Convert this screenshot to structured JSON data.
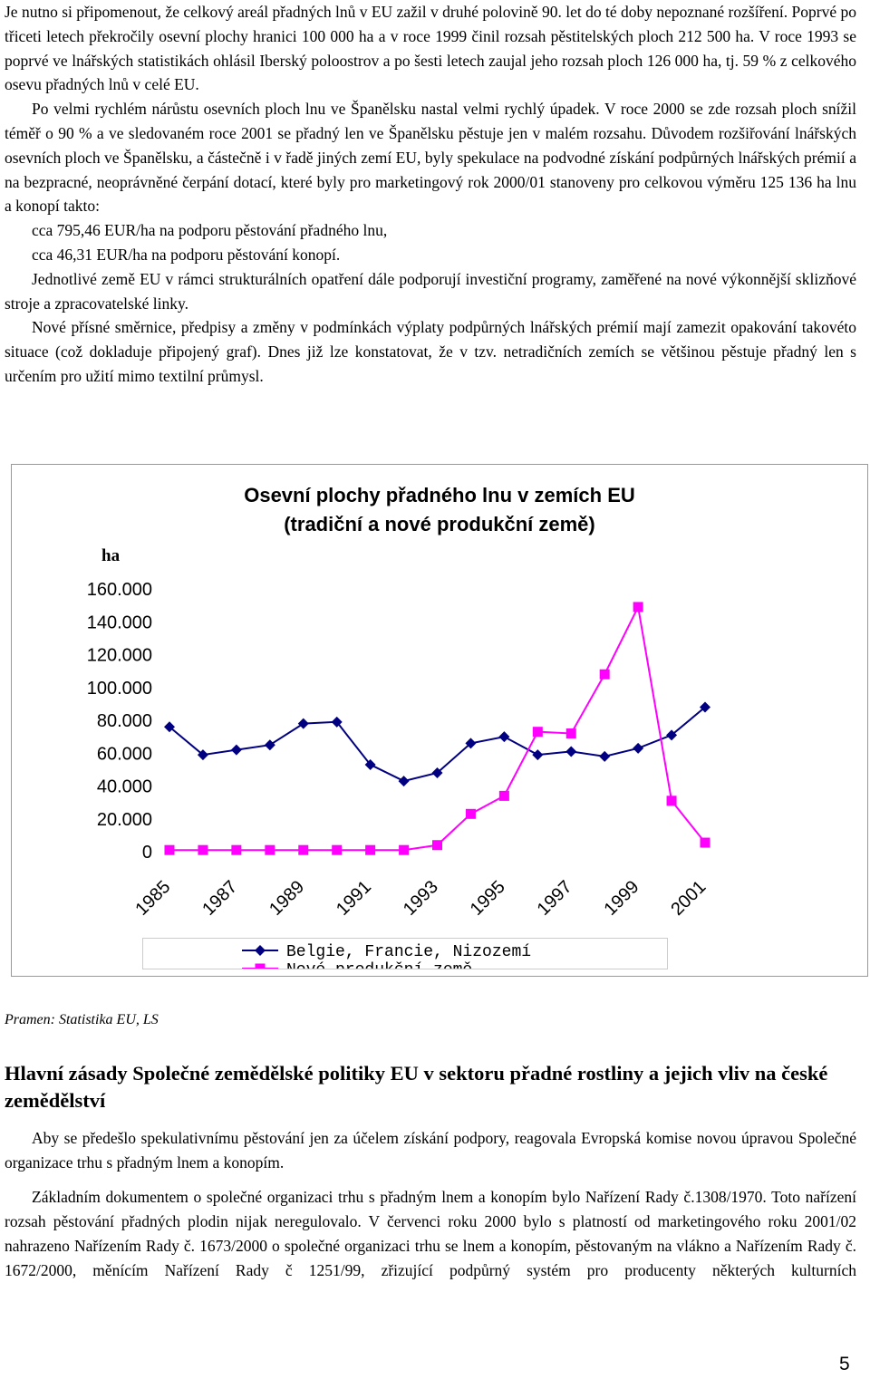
{
  "paragraphs": [
    "Je nutno si připomenout, že celkový areál přadných lnů v EU zažil v druhé polovině 90. let do té doby nepoznané rozšíření. Poprvé po třiceti letech překročily osevní plochy hranici 100 000 ha a v roce 1999 činil rozsah pěstitelských ploch 212 500 ha. V roce 1993 se poprvé ve lnářských statistikách ohlásil Iberský poloostrov a po šesti letech zaujal jeho rozsah ploch 126 000 ha, tj. 59 % z celkového osevu přadných lnů v celé EU.",
    "Po velmi rychlém nárůstu osevních ploch lnu ve Španělsku nastal velmi rychlý úpadek. V roce 2000 se zde rozsah ploch snížil téměř o 90 % a ve sledovaném roce 2001 se přadný len ve Španělsku pěstuje jen v malém rozsahu. Důvodem rozšiřování lnářských osevních ploch ve Španělsku, a částečně i v řadě jiných zemí EU, byly spekulace na podvodné získání podpůrných lnářských prémií a na bezpracné, neoprávněné čerpání dotací, které byly pro marketingový rok 2000/01 stanoveny pro celkovou výměru 125 136 ha lnu a konopí takto:",
    "cca 795,46 EUR/ha na podporu pěstování přadného lnu,",
    "cca 46,31 EUR/ha na podporu pěstování konopí.",
    "Jednotlivé země EU v rámci strukturálních opatření dále podporují investiční programy, zaměřené na nové výkonnější sklizňové stroje a zpracovatelské linky.",
    "Nové přísné směrnice, předpisy a změny v podmínkách výplaty podpůrných lnářských prémií mají zamezit opakování takovéto situace (což dokladuje připojený graf). Dnes již lze konstatovat, že v tzv. netradičních zemích se většinou pěstuje přadný len s určením pro užití mimo textilní průmysl."
  ],
  "chart_data": {
    "type": "line",
    "title": [
      "Osevní plochy přadného lnu v zemích EU",
      "(tradiční a nové produkční země)"
    ],
    "y_label": "ha",
    "x": [
      1985,
      1986,
      1987,
      1988,
      1989,
      1990,
      1991,
      1992,
      1993,
      1994,
      1995,
      1996,
      1997,
      1998,
      1999,
      2000,
      2001
    ],
    "xlim": [
      1985,
      2001
    ],
    "xticks": [
      1985,
      1987,
      1989,
      1991,
      1993,
      1995,
      1997,
      1999,
      2001
    ],
    "ylim": [
      0,
      160000
    ],
    "yticks": [
      0,
      {
        "value": 20000,
        "label": "20.000"
      },
      {
        "value": 40000,
        "label": "40.000"
      },
      {
        "value": 60000,
        "label": "60.000"
      },
      {
        "value": 80000,
        "label": "80.000"
      },
      {
        "value": 100000,
        "label": "100.000"
      },
      {
        "value": 120000,
        "label": "120.000"
      },
      {
        "value": 140000,
        "label": "140.000"
      },
      {
        "value": 160000,
        "label": "160.000"
      }
    ],
    "series": [
      {
        "name": "Belgie, Francie, Nizozemí",
        "color": "#000080",
        "marker": "diamond",
        "values": [
          76000,
          59000,
          62000,
          65000,
          78000,
          79000,
          53000,
          43000,
          48000,
          66000,
          70000,
          59000,
          61000,
          58000,
          63000,
          71000,
          88000
        ]
      },
      {
        "name": "Nové produkční země",
        "color": "#ff00ff",
        "marker": "square",
        "values": [
          1000,
          1000,
          1000,
          1000,
          1000,
          1000,
          1000,
          1000,
          4000,
          23000,
          34000,
          73000,
          72000,
          108000,
          149000,
          31000,
          5500
        ]
      }
    ]
  },
  "source": "Pramen: Statistika EU, LS",
  "heading": "Hlavní zásady Společné zemědělské politiky EU v sektoru přadné rostliny a jejich vliv na české zemědělství",
  "paragraphs2": [
    "Aby se předešlo spekulativnímu pěstování jen za účelem získání podpory, reagovala Evropská komise novou úpravou Společné organizace trhu s přadným lnem a konopím.",
    "Základním dokumentem o společné organizaci trhu s přadným lnem a konopím bylo Nařízení Rady č.1308/1970. Toto nařízení rozsah pěstování přadných plodin nijak neregulovalo. V červenci roku 2000 bylo s platností od marketingového roku 2001/02 nahrazeno Nařízením Rady č. 1673/2000 o společné organizaci trhu se lnem a konopím, pěstovaným na vlákno a Nařízením Rady č. 1672/2000, měnícím Nařízení Rady č 1251/99, zřizující podpůrný systém pro producenty některých kulturních"
  ],
  "page_number": "5"
}
